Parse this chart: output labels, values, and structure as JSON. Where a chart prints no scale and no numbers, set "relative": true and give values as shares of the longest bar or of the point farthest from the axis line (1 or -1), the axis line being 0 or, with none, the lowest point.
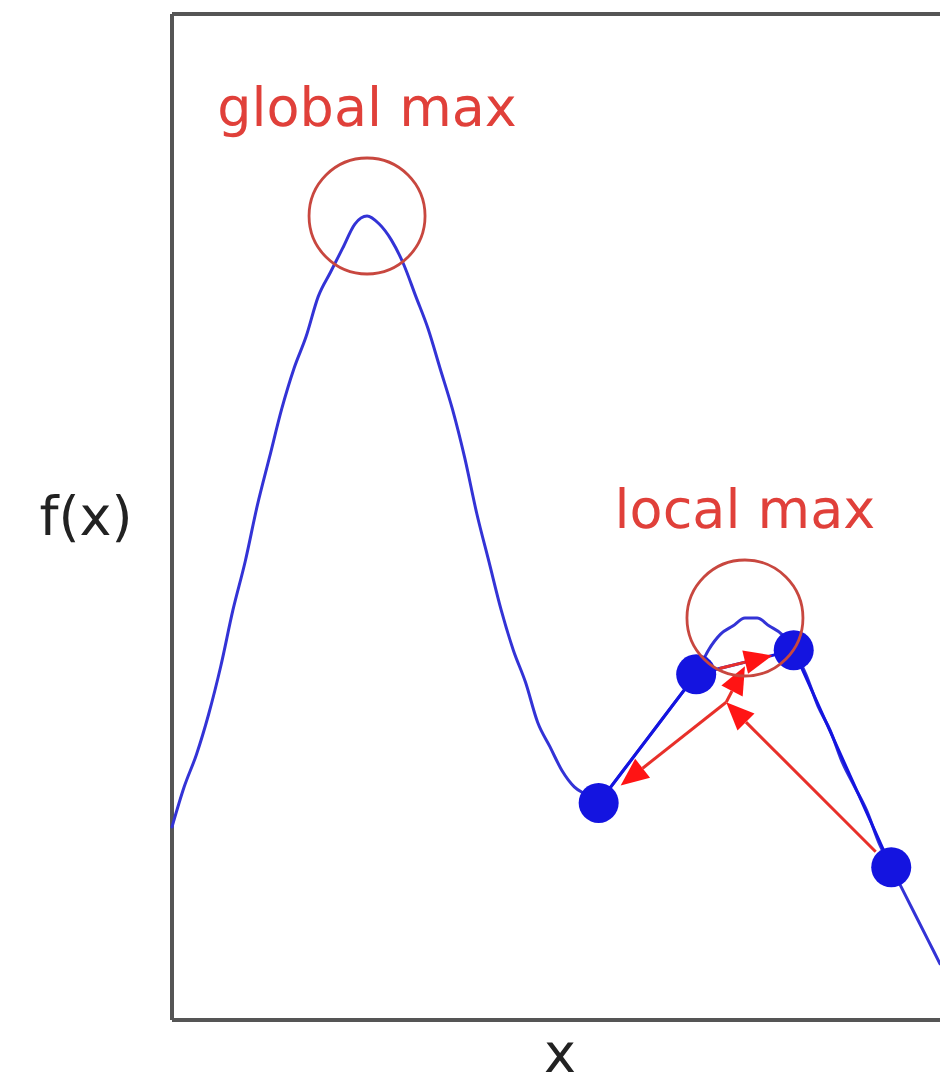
{
  "chart_data": {
    "type": "line",
    "xlabel": "x",
    "ylabel": "f(x)",
    "relative": true,
    "categories": [
      null,
      null,
      null,
      null,
      null,
      null,
      null,
      null,
      null,
      null,
      null,
      null,
      null,
      null,
      null,
      null,
      null,
      null,
      null,
      null,
      null,
      null,
      null,
      null,
      null,
      null,
      null,
      null,
      null,
      null,
      null,
      null,
      null,
      null,
      null,
      null,
      null,
      null,
      null,
      null,
      null,
      null,
      null,
      null,
      null,
      null,
      null,
      null,
      null,
      null,
      null,
      null,
      null,
      null,
      null,
      null,
      null,
      null,
      null,
      null,
      null,
      null,
      null,
      null
    ],
    "series": [
      {
        "color": "#3333d6",
        "values": [
          0.24,
          0.29,
          0.33,
          0.38,
          0.44,
          0.51,
          0.57,
          0.64,
          0.7,
          0.76,
          0.81,
          0.85,
          0.9,
          0.93,
          0.96,
          0.99,
          1,
          0.99,
          0.97,
          0.94,
          0.9,
          0.86,
          0.81,
          0.76,
          0.7,
          0.63,
          0.57,
          0.51,
          0.46,
          0.42,
          0.37,
          0.34,
          0.31,
          0.29,
          0.28,
          0.27,
          0.29,
          0.31,
          0.33,
          0.35,
          0.37,
          0.39,
          0.41,
          0.43,
          0.46,
          0.48,
          0.49,
          0.5,
          0.5,
          0.49,
          0.48,
          0.46,
          0.43,
          0.39,
          0.36,
          0.32,
          0.29,
          0.26,
          0.22,
          0.19,
          0.16,
          0.13,
          0.1,
          0.07
        ]
      },
      {
        "color": "#1414e0",
        "marker": "circle",
        "values": [
          null,
          null,
          null,
          null,
          null,
          null,
          null,
          null,
          null,
          null,
          null,
          null,
          null,
          null,
          null,
          null,
          null,
          null,
          null,
          null,
          null,
          null,
          null,
          null,
          null,
          null,
          null,
          null,
          null,
          null,
          null,
          null,
          null,
          null,
          null,
          0.27,
          null,
          null,
          null,
          null,
          null,
          null,
          null,
          0.43,
          null,
          null,
          null,
          null,
          null,
          null,
          null,
          0.46,
          null,
          null,
          null,
          null,
          null,
          null,
          null,
          0.19,
          null,
          null,
          null,
          null
        ]
      }
    ],
    "annotations": [
      {
        "text": "global max",
        "y": 1
      },
      {
        "text": "local max",
        "y": 0.5
      }
    ]
  }
}
